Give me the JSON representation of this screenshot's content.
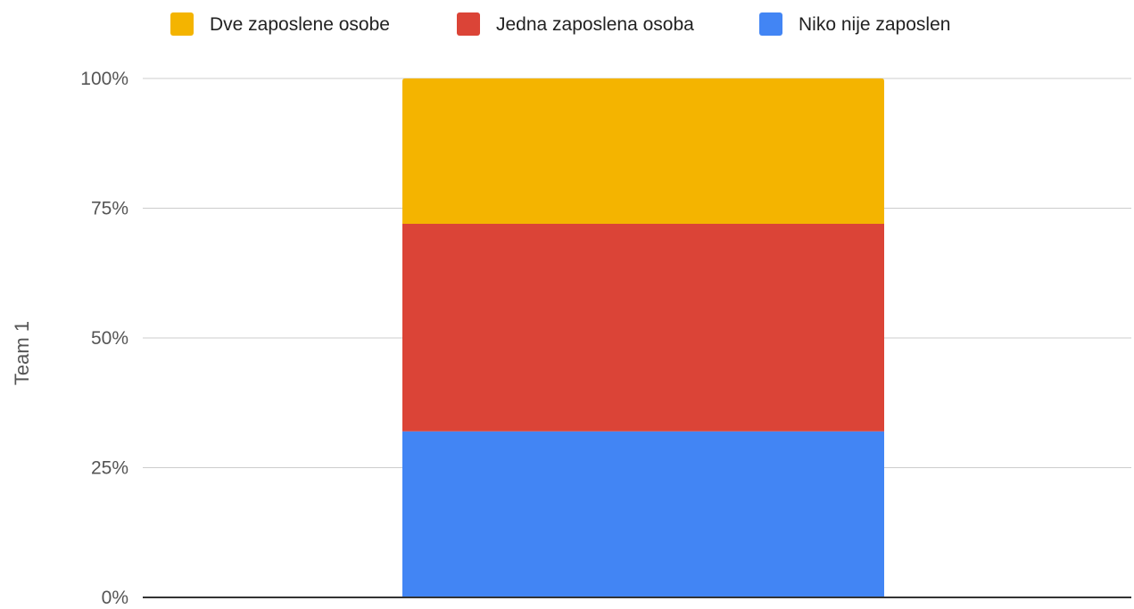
{
  "chart_data": {
    "type": "bar",
    "stacked": true,
    "percent_stacked": true,
    "categories": [
      ""
    ],
    "series": [
      {
        "name": "Niko nije zaposlen",
        "color": "#4285f4",
        "values": [
          32
        ]
      },
      {
        "name": "Jedna zaposlena osoba",
        "color": "#db4437",
        "values": [
          40
        ]
      },
      {
        "name": "Dve zaposlene osobe",
        "color": "#f4b400",
        "values": [
          28
        ]
      }
    ],
    "legend_order": [
      "Dve zaposlene osobe",
      "Jedna zaposlena osoba",
      "Niko nije zaposlen"
    ],
    "legend_position": "top",
    "ylabel": "Team 1",
    "xlabel": "",
    "ylim": [
      0,
      100
    ],
    "yticks": [
      0,
      25,
      50,
      75,
      100
    ],
    "ytick_labels": [
      "0%",
      "25%",
      "50%",
      "75%",
      "100%"
    ],
    "grid": true
  }
}
